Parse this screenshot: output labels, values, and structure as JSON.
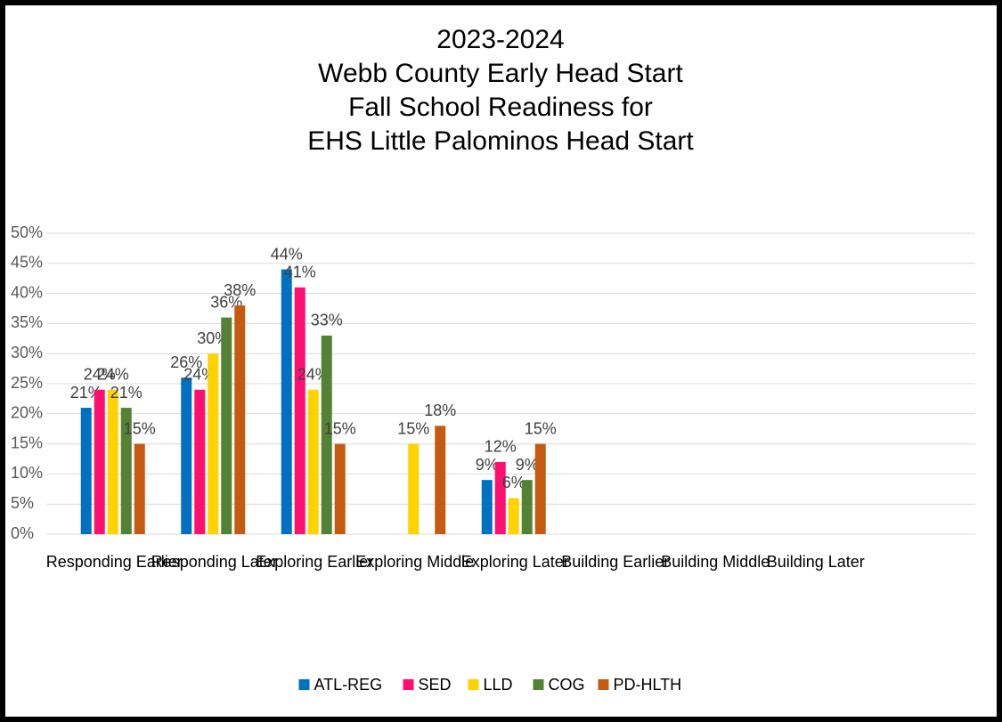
{
  "chart_data": {
    "type": "bar",
    "title": [
      "2023-2024",
      "Webb County Early Head Start",
      "Fall School Readiness for",
      "EHS Little Palominos  Head Start"
    ],
    "categories": [
      "Responding Earlier",
      "Responding Later",
      "Exploring Earlier",
      "Exploring Middle",
      "Exploring Later",
      "Building Earlier",
      "Building Middle",
      "Building Later"
    ],
    "series": [
      {
        "name": "ATL-REG",
        "color": "#0070c0",
        "values": [
          21,
          26,
          44,
          null,
          9,
          null,
          null,
          null
        ],
        "value_labels": [
          "21%",
          "26%",
          "44%",
          null,
          "9%",
          null,
          null,
          null
        ]
      },
      {
        "name": "SED",
        "color": "#ff0f6f",
        "values": [
          24,
          24,
          41,
          null,
          12,
          null,
          null,
          null
        ],
        "value_labels": [
          "24%",
          "24%",
          "41%",
          null,
          "12%",
          null,
          null,
          null
        ]
      },
      {
        "name": "LLD",
        "color": "#ffd200",
        "values": [
          24,
          30,
          24,
          15,
          6,
          null,
          null,
          null
        ],
        "value_labels": [
          "24%",
          "30%",
          "24%",
          "15%",
          "6%",
          null,
          null,
          null
        ]
      },
      {
        "name": "COG",
        "color": "#548235",
        "values": [
          21,
          36,
          33,
          null,
          9,
          null,
          null,
          null
        ],
        "value_labels": [
          "21%",
          "36%",
          "33%",
          null,
          "9%",
          null,
          null,
          null
        ]
      },
      {
        "name": "PD-HLTH",
        "color": "#c55a11",
        "values": [
          15,
          38,
          15,
          18,
          15,
          null,
          null,
          null
        ],
        "value_labels": [
          "15%",
          "38%",
          "15%",
          "18%",
          "15%",
          null,
          null,
          null
        ]
      }
    ],
    "ylim": [
      0,
      50
    ],
    "yticks": [
      {
        "value": 0,
        "label": "0%"
      },
      {
        "value": 5,
        "label": "5%"
      },
      {
        "value": 10,
        "label": "10%"
      },
      {
        "value": 15,
        "label": "15%"
      },
      {
        "value": 20,
        "label": "20%"
      },
      {
        "value": 25,
        "label": "25%"
      },
      {
        "value": 30,
        "label": "30%"
      },
      {
        "value": 35,
        "label": "35%"
      },
      {
        "value": 40,
        "label": "40%"
      },
      {
        "value": 45,
        "label": "45%"
      },
      {
        "value": 50,
        "label": "50%"
      }
    ],
    "grid": true,
    "legend": "bottom"
  }
}
